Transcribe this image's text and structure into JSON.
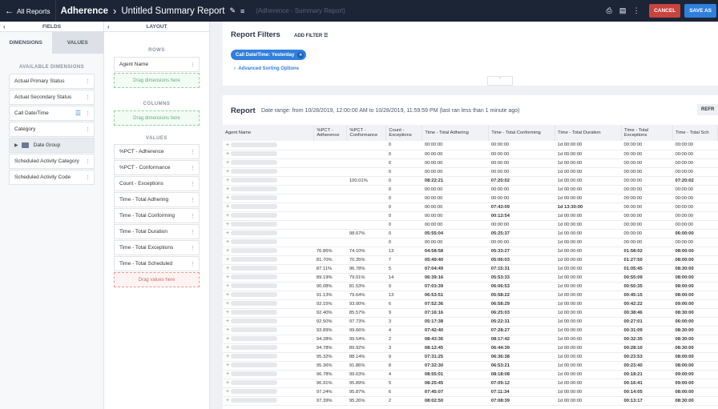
{
  "topbar": {
    "back_label": "All Reports",
    "module": "Adherence",
    "title": "Untitled Summary Report",
    "subtitle": "(Adherence - Summary Report)",
    "cancel_label": "CANCEL",
    "save_label": "SAVE AS"
  },
  "fields_panel": {
    "title": "FIELDS",
    "tabs": [
      "DIMENSIONS",
      "VALUES"
    ],
    "available_heading": "AVAILABLE DIMENSIONS",
    "items": [
      "Actual Primary Status",
      "Actual Secondary Status",
      "Call Date/Time",
      "Category",
      "Date Group",
      "Scheduled Activity Category",
      "Scheduled Activity Code"
    ]
  },
  "layout_panel": {
    "title": "LAYOUT",
    "rows_heading": "ROWS",
    "rows": [
      "Agent Name"
    ],
    "rows_drop": "Drag dimensions here",
    "columns_heading": "COLUMNS",
    "columns_drop": "Drag dimensions here",
    "values_heading": "VALUES",
    "values": [
      "%PCT - Adherence",
      "%PCT - Conformance",
      "Count - Exceptions",
      "Time - Total Adhering",
      "Time - Total Conforming",
      "Time - Total Duration",
      "Time - Total Exceptions",
      "Time - Total Scheduled"
    ],
    "values_drop": "Drag values here"
  },
  "filters": {
    "title": "Report Filters",
    "add_filter_label": "ADD FILTER",
    "chip_label": "Call Date/Time:",
    "chip_value": "Yesterday",
    "advanced_label": "Advanced Sorting Options"
  },
  "report": {
    "title": "Report",
    "range": "Date range: from 10/28/2019, 12:00:00 AM to 10/28/2019, 11:59:59 PM (last ran less than 1 minute ago)",
    "refresh_label": "REFR",
    "columns": [
      [
        "Agent Name"
      ],
      [
        "%PCT -",
        "Adherence"
      ],
      [
        "%PCT -",
        "Conformance"
      ],
      [
        "Count -",
        "Exceptions"
      ],
      [
        "Time - Total Adhering"
      ],
      [
        "Time - Total Conforming"
      ],
      [
        "Time - Total Duration"
      ],
      [
        "Time - Total",
        "Exceptions"
      ],
      [
        "Time - Total Sch"
      ]
    ],
    "rows": [
      [
        "",
        "",
        "0",
        "00:00:00",
        "00:00:00",
        "1d 00:00:00",
        "00:00:00",
        "00:00:00"
      ],
      [
        "",
        "",
        "0",
        "00:00:00",
        "00:00:00",
        "1d 00:00:00",
        "00:00:00",
        "00:00:00"
      ],
      [
        "",
        "",
        "0",
        "00:00:00",
        "00:00:00",
        "1d 00:00:00",
        "00:00:00",
        "00:00:00"
      ],
      [
        "",
        "",
        "0",
        "00:00:00",
        "00:00:00",
        "1d 00:00:00",
        "00:00:00",
        "00:00:00"
      ],
      [
        "",
        "100.01%",
        "0",
        "08:22:21",
        "07:20:02",
        "1d 00:00:00",
        "00:00:00",
        "07:20:02"
      ],
      [
        "",
        "",
        "0",
        "00:00:00",
        "00:00:00",
        "1d 00:00:00",
        "00:00:00",
        "00:00:00"
      ],
      [
        "",
        "",
        "0",
        "00:00:00",
        "00:00:00",
        "1d 00:00:00",
        "00:00:00",
        "00:00:00"
      ],
      [
        "",
        "",
        "0",
        "00:00:00",
        "07:43:09",
        "1d 13:30:00",
        "00:00:00",
        "00:00:00"
      ],
      [
        "",
        "",
        "0",
        "00:00:00",
        "00:13:54",
        "1d 00:00:00",
        "00:00:00",
        "00:00:00"
      ],
      [
        "",
        "",
        "0",
        "00:00:00",
        "00:00:00",
        "1d 00:00:00",
        "00:00:00",
        "00:00:00"
      ],
      [
        "",
        "98.67%",
        "0",
        "05:55:04",
        "05:25:37",
        "1d 00:00:00",
        "00:00:00",
        "06:00:00"
      ],
      [
        "",
        "",
        "0",
        "00:00:00",
        "00:00:00",
        "1d 00:00:00",
        "00:00:00",
        "00:00:00"
      ],
      [
        "76.86%",
        "74.10%",
        "13",
        "04:58:58",
        "05:33:27",
        "1d 00:00:00",
        "01:58:02",
        "08:00:00"
      ],
      [
        "81.70%",
        "70.35%",
        "7",
        "05:49:40",
        "05:06:03",
        "1d 00:00:00",
        "01:27:50",
        "08:00:00"
      ],
      [
        "87.11%",
        "96.78%",
        "5",
        "07:04:49",
        "07:15:31",
        "1d 00:00:00",
        "01:05:45",
        "08:30:00"
      ],
      [
        "89.19%",
        "79.01%",
        "14",
        "06:39:16",
        "05:53:33",
        "1d 00:00:00",
        "00:55:09",
        "08:00:00"
      ],
      [
        "90.08%",
        "81.53%",
        "9",
        "07:03:39",
        "06:06:53",
        "1d 00:00:00",
        "00:50:35",
        "08:00:00"
      ],
      [
        "91.13%",
        "79.64%",
        "13",
        "06:53:51",
        "05:58:22",
        "1d 00:00:00",
        "00:45:15",
        "08:00:00"
      ],
      [
        "92.15%",
        "93.00%",
        "6",
        "07:52:36",
        "06:58:29",
        "1d 00:00:00",
        "00:42:22",
        "09:00:00"
      ],
      [
        "92.40%",
        "85.57%",
        "9",
        "07:16:16",
        "06:25:03",
        "1d 00:00:00",
        "00:38:46",
        "08:30:00"
      ],
      [
        "92.50%",
        "97.73%",
        "3",
        "05:17:38",
        "05:22:31",
        "1d 00:00:00",
        "00:27:01",
        "06:00:00"
      ],
      [
        "93.89%",
        "99.66%",
        "4",
        "07:42:40",
        "07:28:27",
        "1d 00:00:00",
        "00:31:09",
        "08:30:00"
      ],
      [
        "94.28%",
        "99.54%",
        "2",
        "08:43:36",
        "08:17:42",
        "1d 00:00:00",
        "00:32:35",
        "08:30:00"
      ],
      [
        "94.78%",
        "89.92%",
        "3",
        "08:12:45",
        "06:44:39",
        "1d 00:00:00",
        "00:28:10",
        "08:30:00"
      ],
      [
        "95.32%",
        "88.14%",
        "9",
        "07:31:25",
        "06:36:38",
        "1d 00:00:00",
        "00:23:53",
        "08:00:00"
      ],
      [
        "95.36%",
        "91.86%",
        "8",
        "07:32:30",
        "06:53:21",
        "1d 00:00:00",
        "00:23:40",
        "08:00:00"
      ],
      [
        "96.78%",
        "99.63%",
        "4",
        "08:55:01",
        "08:18:08",
        "1d 00:00:00",
        "00:18:21",
        "09:00:00"
      ],
      [
        "96.91%",
        "95.89%",
        "5",
        "08:25:45",
        "07:09:12",
        "1d 00:00:00",
        "00:16:41",
        "09:00:00"
      ],
      [
        "97.24%",
        "95.87%",
        "6",
        "07:45:07",
        "07:11:34",
        "1d 00:00:00",
        "00:14:05",
        "08:00:00"
      ],
      [
        "97.39%",
        "95.26%",
        "2",
        "08:02:50",
        "07:08:39",
        "1d 00:00:00",
        "00:13:17",
        "08:30:00"
      ]
    ]
  },
  "colors": {
    "topbar_bg": "#1c2536",
    "accent": "#2f7fde",
    "cancel": "#c9433f",
    "plus": "#4caf50"
  },
  "icons": {
    "back": "arrow-left-icon",
    "edit": "pencil-icon",
    "print": "printer-icon",
    "schedule": "calendar-icon",
    "more": "kebab-icon"
  }
}
